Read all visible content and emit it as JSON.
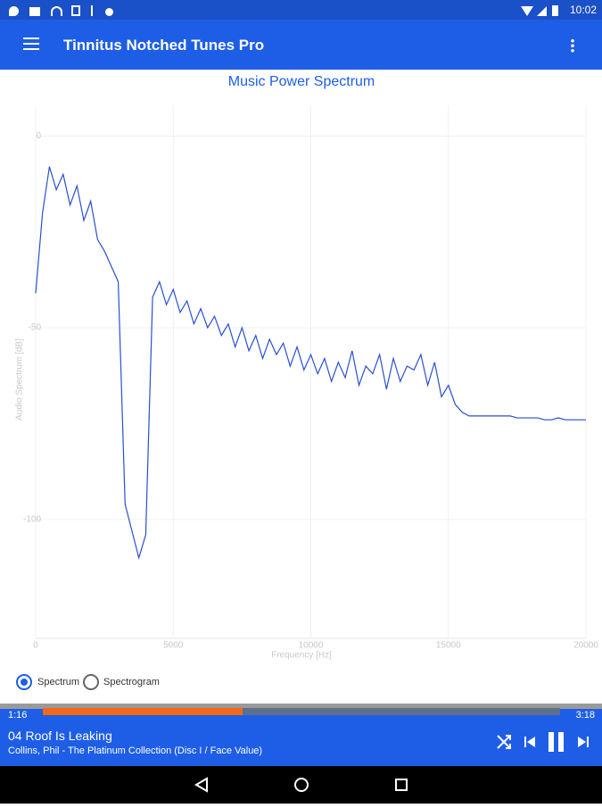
{
  "status_bar": {
    "time": "10:02"
  },
  "app_bar": {
    "title": "Tinnitus Notched Tunes Pro"
  },
  "chart_data": {
    "type": "line",
    "title": "Music Power Spectrum",
    "x_label": "Frequency [Hz]",
    "y_label": "Audio Spectrum [dB]",
    "xlim": [
      0,
      20000
    ],
    "xticks": [
      0,
      5000,
      10000,
      15000,
      20000
    ],
    "ylim": [
      -131,
      8
    ],
    "yticks": [
      0,
      -50,
      -100
    ],
    "grid": true,
    "color": "#2a4fd0",
    "x": [
      0,
      250,
      500,
      750,
      1000,
      1250,
      1500,
      1750,
      2000,
      2250,
      2500,
      2750,
      3000,
      3250,
      3500,
      3750,
      4000,
      4250,
      4500,
      4750,
      5000,
      5250,
      5500,
      5750,
      6000,
      6250,
      6500,
      6750,
      7000,
      7250,
      7500,
      7750,
      8000,
      8250,
      8500,
      8750,
      9000,
      9250,
      9500,
      9750,
      10000,
      10250,
      10500,
      10750,
      11000,
      11250,
      11500,
      11750,
      12000,
      12250,
      12500,
      12750,
      13000,
      13250,
      13500,
      13750,
      14000,
      14250,
      14500,
      14750,
      15000,
      15250,
      15500,
      15750,
      16000,
      16250,
      16500,
      16750,
      17000,
      17250,
      17500,
      17750,
      18000,
      18250,
      18500,
      18750,
      19000,
      19250,
      19500,
      19750,
      20000
    ],
    "values": [
      -41,
      -20,
      -8,
      -14,
      -10,
      -18,
      -13,
      -22,
      -17,
      -27,
      -30,
      -34,
      -38,
      -96,
      -103,
      -110,
      -104,
      -42,
      -38,
      -44,
      -40,
      -46,
      -43,
      -49,
      -45,
      -50,
      -47,
      -52,
      -49,
      -55,
      -50,
      -56,
      -52,
      -58,
      -53,
      -57,
      -54,
      -60,
      -55,
      -61,
      -57,
      -62,
      -58,
      -64,
      -59,
      -63,
      -56,
      -65,
      -60,
      -62,
      -57,
      -66,
      -58,
      -64,
      -60,
      -61,
      -57,
      -65,
      -59,
      -68,
      -65,
      -70,
      -72,
      -73,
      -73,
      -73,
      -73,
      -73,
      -73,
      -73,
      -73.5,
      -73.5,
      -73.5,
      -73.5,
      -74,
      -74,
      -73.5,
      -74,
      -74,
      -74,
      -74
    ]
  },
  "view_options": [
    "Spectrum",
    "Spectrogram"
  ],
  "player": {
    "elapsed": "1:16",
    "duration": "3:18",
    "track": "04 Roof Is Leaking",
    "artist_album": "Collins, Phil - The Platinum Collection (Disc I / Face Value)"
  }
}
